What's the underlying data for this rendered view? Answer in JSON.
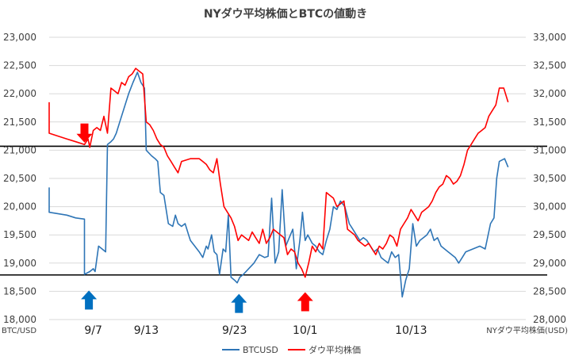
{
  "chart_data": {
    "type": "line",
    "title": "NYダウ平均株価とBTCの値動き",
    "left_axis": {
      "unit_label": "BTC/USD",
      "ylim": [
        18000,
        23000
      ],
      "ticks": [
        "23,000",
        "22,500",
        "22,000",
        "21,500",
        "21,000",
        "20,500",
        "20,000",
        "19,500",
        "19,000",
        "18,500",
        "18,000"
      ]
    },
    "right_axis": {
      "unit_label": "NYダウ平均株価(USD)",
      "ylim": [
        28000,
        33000
      ],
      "ticks": [
        "33,000",
        "32,500",
        "32,000",
        "31,500",
        "31,000",
        "30,500",
        "30,000",
        "29,500",
        "29,000",
        "28,500",
        "28,000"
      ]
    },
    "x_labels": [
      {
        "label": "9/7",
        "x": 5
      },
      {
        "label": "9/13",
        "x": 11
      },
      {
        "label": "9/23",
        "x": 21
      },
      {
        "label": "10/1",
        "x": 29
      },
      {
        "label": "10/13",
        "x": 41
      }
    ],
    "x_range": [
      0,
      54
    ],
    "grid": "horizontal",
    "legend_position": "bottom",
    "reference_lines": [
      {
        "axis": "left",
        "value": 21070,
        "color": "#000000"
      },
      {
        "axis": "left",
        "value": 18790,
        "color": "#000000"
      }
    ],
    "annotations": [
      {
        "type": "arrow-down",
        "x": 4,
        "y": 21290,
        "color": "#ff0000"
      },
      {
        "type": "arrow-up",
        "x": 4.5,
        "y": 18360,
        "color": "#0070c0"
      },
      {
        "type": "arrow-up",
        "x": 21.5,
        "y": 18300,
        "color": "#0070c0"
      },
      {
        "type": "arrow-up",
        "x": 29,
        "y": 18330,
        "color": "#ff0000"
      }
    ],
    "series": [
      {
        "name": "BTCUSD",
        "axis": "left",
        "color": "#2e75b6",
        "points": [
          [
            0,
            20340
          ],
          [
            0,
            19900
          ],
          [
            2,
            19850
          ],
          [
            3,
            19800
          ],
          [
            4,
            19780
          ],
          [
            4,
            18800
          ],
          [
            4.6,
            18850
          ],
          [
            5,
            18900
          ],
          [
            5.2,
            18850
          ],
          [
            5.6,
            19300
          ],
          [
            6,
            19250
          ],
          [
            6.4,
            19200
          ],
          [
            6.6,
            21100
          ],
          [
            7,
            21150
          ],
          [
            7.3,
            21200
          ],
          [
            7.6,
            21300
          ],
          [
            8,
            21500
          ],
          [
            8.5,
            21750
          ],
          [
            9,
            22000
          ],
          [
            9.5,
            22200
          ],
          [
            10,
            22380
          ],
          [
            10.4,
            22200
          ],
          [
            10.8,
            22100
          ],
          [
            11,
            21000
          ],
          [
            11.6,
            20900
          ],
          [
            12,
            20850
          ],
          [
            12.3,
            20800
          ],
          [
            12.6,
            20250
          ],
          [
            13,
            20200
          ],
          [
            13.5,
            19700
          ],
          [
            14,
            19650
          ],
          [
            14.3,
            19850
          ],
          [
            14.6,
            19700
          ],
          [
            15,
            19650
          ],
          [
            15.4,
            19700
          ],
          [
            15.8,
            19500
          ],
          [
            16,
            19400
          ],
          [
            16.5,
            19300
          ],
          [
            17,
            19200
          ],
          [
            17.4,
            19100
          ],
          [
            17.8,
            19300
          ],
          [
            18,
            19250
          ],
          [
            18.4,
            19500
          ],
          [
            18.7,
            19200
          ],
          [
            19,
            19150
          ],
          [
            19.3,
            18800
          ],
          [
            19.7,
            19250
          ],
          [
            20,
            19200
          ],
          [
            20.3,
            19850
          ],
          [
            20.6,
            18750
          ],
          [
            21,
            18700
          ],
          [
            21.3,
            18650
          ],
          [
            21.6,
            18750
          ],
          [
            22,
            18800
          ],
          [
            22.6,
            18900
          ],
          [
            23.2,
            19000
          ],
          [
            23.8,
            19150
          ],
          [
            24.4,
            19100
          ],
          [
            24.8,
            19120
          ],
          [
            25.2,
            20150
          ],
          [
            25.6,
            19000
          ],
          [
            26,
            19200
          ],
          [
            26.4,
            20300
          ],
          [
            26.8,
            19300
          ],
          [
            27.2,
            19450
          ],
          [
            27.6,
            19600
          ],
          [
            28,
            18900
          ],
          [
            28.4,
            19400
          ],
          [
            28.7,
            19900
          ],
          [
            29,
            19400
          ],
          [
            29.3,
            19500
          ],
          [
            29.8,
            19350
          ],
          [
            30.2,
            19300
          ],
          [
            30.6,
            19200
          ],
          [
            31,
            19150
          ],
          [
            31.4,
            19400
          ],
          [
            31.8,
            19600
          ],
          [
            32.2,
            20000
          ],
          [
            32.6,
            19950
          ],
          [
            33,
            20100
          ],
          [
            33.5,
            20000
          ],
          [
            34,
            19700
          ],
          [
            34.4,
            19600
          ],
          [
            34.8,
            19500
          ],
          [
            35.2,
            19400
          ],
          [
            35.6,
            19450
          ],
          [
            36,
            19400
          ],
          [
            36.4,
            19300
          ],
          [
            36.8,
            19200
          ],
          [
            37.2,
            19250
          ],
          [
            37.6,
            19100
          ],
          [
            38,
            19050
          ],
          [
            38.4,
            19000
          ],
          [
            38.8,
            19200
          ],
          [
            39.2,
            19100
          ],
          [
            39.6,
            19150
          ],
          [
            40,
            18400
          ],
          [
            40.4,
            18700
          ],
          [
            40.8,
            18900
          ],
          [
            41.2,
            19700
          ],
          [
            41.6,
            19300
          ],
          [
            42,
            19400
          ],
          [
            42.4,
            19450
          ],
          [
            42.8,
            19500
          ],
          [
            43.2,
            19600
          ],
          [
            43.6,
            19400
          ],
          [
            44,
            19450
          ],
          [
            44.4,
            19300
          ],
          [
            44.8,
            19250
          ],
          [
            45.2,
            19200
          ],
          [
            45.6,
            19150
          ],
          [
            46,
            19100
          ],
          [
            46.4,
            19000
          ],
          [
            46.8,
            19100
          ],
          [
            47.2,
            19200
          ],
          [
            48,
            19250
          ],
          [
            48.8,
            19300
          ],
          [
            49.4,
            19250
          ],
          [
            50,
            19700
          ],
          [
            50.4,
            19800
          ],
          [
            50.7,
            20500
          ],
          [
            51,
            20800
          ],
          [
            51.6,
            20850
          ],
          [
            52,
            20700
          ]
        ]
      },
      {
        "name": "ダウ平均株価",
        "axis": "right",
        "color": "#ff0000",
        "points": [
          [
            0,
            31850
          ],
          [
            0,
            31300
          ],
          [
            1,
            31250
          ],
          [
            2,
            31200
          ],
          [
            3,
            31150
          ],
          [
            4,
            31100
          ],
          [
            4.4,
            31200
          ],
          [
            4.6,
            31050
          ],
          [
            5,
            31350
          ],
          [
            5.4,
            31400
          ],
          [
            5.8,
            31350
          ],
          [
            6.2,
            31600
          ],
          [
            6.6,
            31300
          ],
          [
            7,
            32100
          ],
          [
            7.4,
            32050
          ],
          [
            7.8,
            32000
          ],
          [
            8.2,
            32200
          ],
          [
            8.6,
            32150
          ],
          [
            9,
            32300
          ],
          [
            9.4,
            32350
          ],
          [
            9.8,
            32450
          ],
          [
            10.2,
            32400
          ],
          [
            10.6,
            32350
          ],
          [
            11,
            31500
          ],
          [
            11.4,
            31450
          ],
          [
            11.8,
            31350
          ],
          [
            12.2,
            31200
          ],
          [
            12.6,
            31100
          ],
          [
            13,
            31050
          ],
          [
            13.4,
            30900
          ],
          [
            13.8,
            30800
          ],
          [
            14.2,
            30700
          ],
          [
            14.6,
            30600
          ],
          [
            15,
            30800
          ],
          [
            16,
            30850
          ],
          [
            17,
            30850
          ],
          [
            17.4,
            30800
          ],
          [
            17.8,
            30750
          ],
          [
            18.2,
            30650
          ],
          [
            18.6,
            30600
          ],
          [
            19,
            30850
          ],
          [
            19.4,
            30400
          ],
          [
            19.8,
            30000
          ],
          [
            20.2,
            29900
          ],
          [
            20.6,
            29800
          ],
          [
            21,
            29650
          ],
          [
            21.4,
            29400
          ],
          [
            21.8,
            29500
          ],
          [
            22.2,
            29450
          ],
          [
            22.6,
            29400
          ],
          [
            23,
            29550
          ],
          [
            23.4,
            29450
          ],
          [
            23.8,
            29350
          ],
          [
            24.2,
            29600
          ],
          [
            24.6,
            29350
          ],
          [
            25,
            29450
          ],
          [
            25.4,
            29600
          ],
          [
            25.8,
            29550
          ],
          [
            26.2,
            29500
          ],
          [
            26.6,
            29450
          ],
          [
            27,
            29150
          ],
          [
            27.4,
            29250
          ],
          [
            27.8,
            29200
          ],
          [
            28.2,
            29000
          ],
          [
            28.6,
            28900
          ],
          [
            29,
            28750
          ],
          [
            29.4,
            29000
          ],
          [
            29.8,
            29300
          ],
          [
            30.2,
            29200
          ],
          [
            30.6,
            29350
          ],
          [
            31,
            29250
          ],
          [
            31.4,
            30250
          ],
          [
            31.8,
            30200
          ],
          [
            32.2,
            30150
          ],
          [
            32.6,
            30000
          ],
          [
            33,
            30050
          ],
          [
            33.4,
            30100
          ],
          [
            33.8,
            29600
          ],
          [
            34.2,
            29550
          ],
          [
            34.6,
            29500
          ],
          [
            35,
            29400
          ],
          [
            35.4,
            29350
          ],
          [
            35.8,
            29300
          ],
          [
            36.2,
            29350
          ],
          [
            36.6,
            29250
          ],
          [
            37,
            29150
          ],
          [
            37.4,
            29300
          ],
          [
            37.8,
            29250
          ],
          [
            38.2,
            29350
          ],
          [
            38.6,
            29500
          ],
          [
            39,
            29450
          ],
          [
            39.4,
            29300
          ],
          [
            39.8,
            29600
          ],
          [
            40.2,
            29700
          ],
          [
            40.6,
            29800
          ],
          [
            41,
            29950
          ],
          [
            41.4,
            29850
          ],
          [
            41.8,
            29750
          ],
          [
            42.2,
            29900
          ],
          [
            42.6,
            29950
          ],
          [
            43,
            30000
          ],
          [
            43.4,
            30100
          ],
          [
            43.8,
            30250
          ],
          [
            44.2,
            30350
          ],
          [
            44.6,
            30400
          ],
          [
            45,
            30550
          ],
          [
            45.4,
            30500
          ],
          [
            45.8,
            30400
          ],
          [
            46.2,
            30450
          ],
          [
            46.6,
            30550
          ],
          [
            47,
            30750
          ],
          [
            47.4,
            31000
          ],
          [
            47.8,
            31100
          ],
          [
            48.2,
            31200
          ],
          [
            48.6,
            31300
          ],
          [
            49,
            31350
          ],
          [
            49.4,
            31400
          ],
          [
            49.8,
            31600
          ],
          [
            50.2,
            31700
          ],
          [
            50.6,
            31800
          ],
          [
            51,
            32100
          ],
          [
            51.5,
            32100
          ],
          [
            52,
            31850
          ]
        ]
      }
    ]
  }
}
